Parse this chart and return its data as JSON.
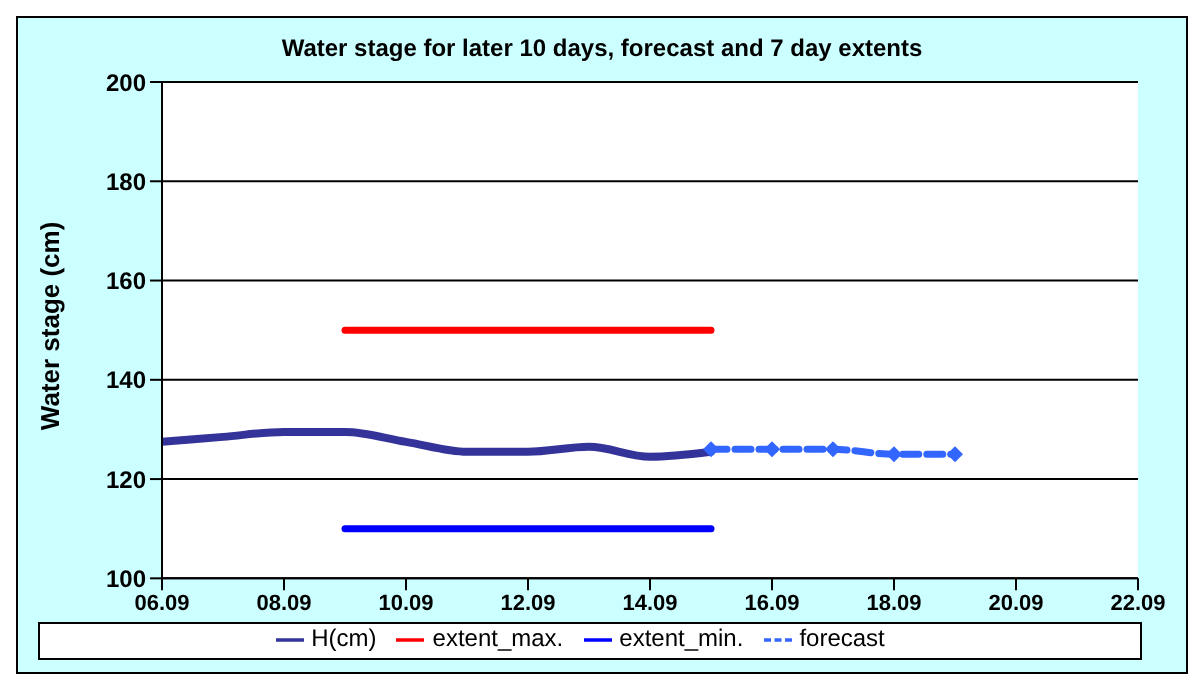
{
  "chart_data": {
    "type": "line",
    "title": "Water stage for later 10 days, forecast and 7 day extents",
    "ylabel": "Water stage (cm)",
    "xlim": [
      "--09-06",
      "--09-22"
    ],
    "xticks": [
      {
        "value": "--09-06",
        "label": "06.09"
      },
      {
        "value": "--09-08",
        "label": "08.09"
      },
      {
        "value": "--09-10",
        "label": "10.09"
      },
      {
        "value": "--09-12",
        "label": "12.09"
      },
      {
        "value": "--09-14",
        "label": "14.09"
      },
      {
        "value": "--09-16",
        "label": "16.09"
      },
      {
        "value": "--09-18",
        "label": "18.09"
      },
      {
        "value": "--09-20",
        "label": "20.09"
      },
      {
        "value": "--09-22",
        "label": "22.09"
      }
    ],
    "ylim": [
      100,
      200
    ],
    "yticks": [
      100,
      120,
      140,
      160,
      180,
      200
    ],
    "grid": "y",
    "legend": "bottom",
    "series": [
      {
        "name": "H(cm)",
        "color": "#333399",
        "x": [
          "--09-06",
          "--09-07",
          "--09-08",
          "--09-09",
          "--09-10",
          "--09-11",
          "--09-12",
          "--09-13",
          "--09-14",
          "--09-15"
        ],
        "values": [
          127.5,
          128.5,
          129.5,
          129.5,
          127.5,
          125.5,
          125.5,
          126.5,
          124.5,
          125.5
        ],
        "marker": "none",
        "line_style": "solid"
      },
      {
        "name": "extent_min.",
        "color": "#0000ff",
        "x": [
          "--09-09",
          "--09-15"
        ],
        "values": [
          110,
          110
        ],
        "marker": "none",
        "line_style": "solid"
      },
      {
        "name": "extent_max.",
        "color": "#ff0000",
        "x": [
          "--09-09",
          "--09-15"
        ],
        "values": [
          150,
          150
        ],
        "marker": "none",
        "line_style": "solid"
      },
      {
        "name": "forecast",
        "color": "#3366ff",
        "x": [
          "--09-15",
          "--09-16",
          "--09-17",
          "--09-18",
          "--09-19"
        ],
        "values": [
          126,
          126,
          126,
          125,
          125
        ],
        "marker": "diamond",
        "line_style": "dashed"
      }
    ]
  }
}
